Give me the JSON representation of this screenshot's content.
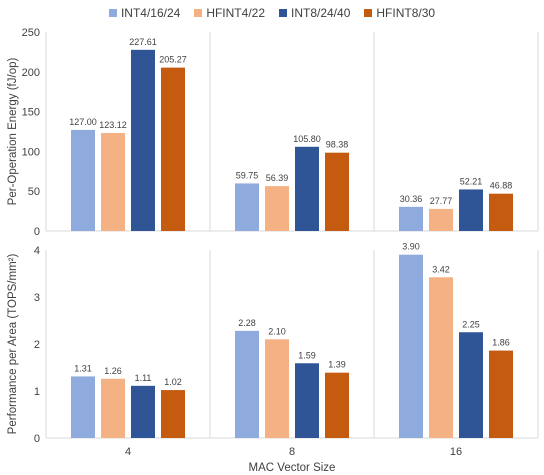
{
  "chart_data": [
    {
      "type": "bar",
      "categories": [
        "4",
        "8",
        "16"
      ],
      "series": [
        {
          "name": "INT4/16/24",
          "color": "#8faadc",
          "values": [
            127.0,
            59.75,
            30.36
          ]
        },
        {
          "name": "HFINT4/22",
          "color": "#f4b183",
          "values": [
            123.12,
            56.39,
            27.77
          ]
        },
        {
          "name": "INT8/24/40",
          "color": "#2f5597",
          "values": [
            227.61,
            105.8,
            52.21
          ]
        },
        {
          "name": "HFINT8/30",
          "color": "#c55a11",
          "values": [
            205.27,
            98.38,
            46.88
          ]
        }
      ],
      "value_labels": [
        [
          "127.00",
          "59.75",
          "30.36"
        ],
        [
          "123.12",
          "56.39",
          "27.77"
        ],
        [
          "227.61",
          "105.80",
          "52.21"
        ],
        [
          "205.27",
          "98.38",
          "46.88"
        ]
      ],
      "ylabel": "Per-Operation Energy (fJ/op)",
      "ylim": [
        0,
        250
      ],
      "yticks": [
        "0",
        "50",
        "100",
        "150",
        "200",
        "250"
      ],
      "grid": "vertical category separators",
      "legend": "top-center"
    },
    {
      "type": "bar",
      "categories": [
        "4",
        "8",
        "16"
      ],
      "series": [
        {
          "name": "INT4/16/24",
          "color": "#8faadc",
          "values": [
            1.31,
            2.28,
            3.9
          ]
        },
        {
          "name": "HFINT4/22",
          "color": "#f4b183",
          "values": [
            1.26,
            2.1,
            3.42
          ]
        },
        {
          "name": "INT8/24/40",
          "color": "#2f5597",
          "values": [
            1.11,
            1.59,
            2.25
          ]
        },
        {
          "name": "HFINT8/30",
          "color": "#c55a11",
          "values": [
            1.02,
            1.39,
            1.86
          ]
        }
      ],
      "value_labels": [
        [
          "1.31",
          "2.28",
          "3.90"
        ],
        [
          "1.26",
          "2.10",
          "3.42"
        ],
        [
          "1.11",
          "1.59",
          "2.25"
        ],
        [
          "1.02",
          "1.39",
          "1.86"
        ]
      ],
      "ylabel": "Performance per Area (TOPS/mm²)",
      "xlabel": "MAC Vector Size",
      "ylim": [
        0,
        4
      ],
      "yticks": [
        "0",
        "1",
        "2",
        "3",
        "4"
      ],
      "grid": "vertical category separators",
      "legend": "top-center"
    }
  ],
  "colors": {
    "axis": "#d9d9d9",
    "text": "#404040"
  }
}
